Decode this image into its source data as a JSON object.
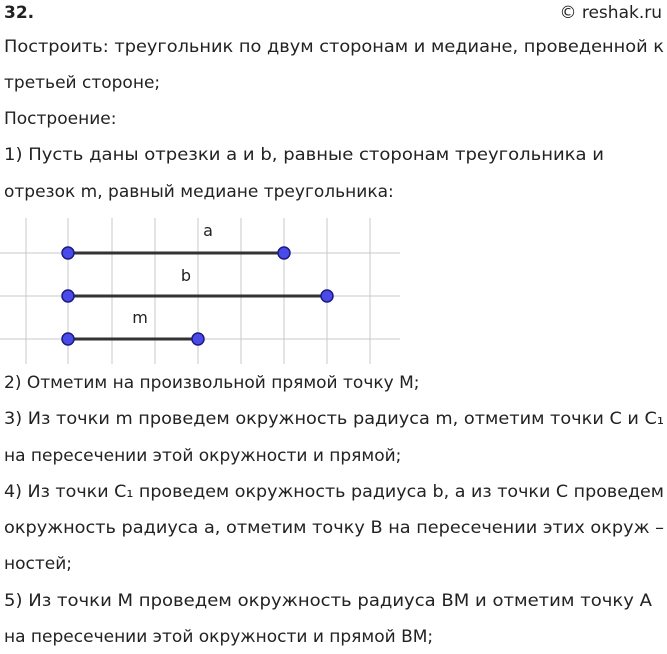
{
  "header": {
    "number": "32.",
    "site": "© reshak.ru"
  },
  "lines": [
    "Построить:  треугольник по двум сторонам и медиане, проведенной к",
    "третьей стороне;",
    "Построение:",
    "1) Пусть даны отрезки a и b, равные сторонам треугольника и",
    "отрезок m, равный медиане треугольника:",
    "2) Отметим на произвольной прямой точку M;",
    "3) Из точки m проведем окружность радиуса m, отметим точки C и C₁",
    "на пересечении этой окружности и прямой;",
    "4) Из точки C₁ проведем окружность радиуса b, а из точки C проведем",
    "окружность радиуса a, отметим точку B на пересечении этих окруж –",
    "ностей;",
    "5) Из точки M проведем окружность радиуса BM и отметим точку A",
    "на пересечении этой окружности и прямой BM;"
  ],
  "figure": {
    "labels": [
      "a",
      "b",
      "m"
    ]
  }
}
